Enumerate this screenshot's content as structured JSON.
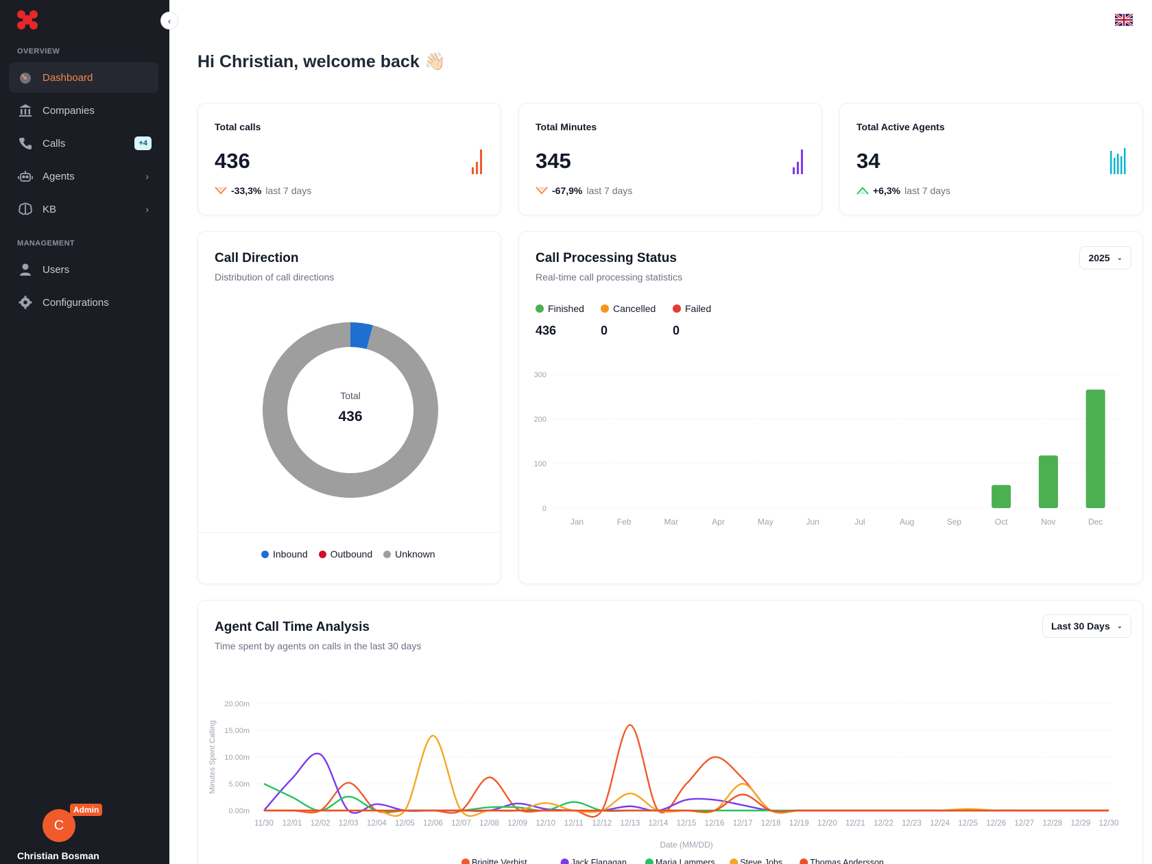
{
  "sidebar": {
    "sections": {
      "overview": "OVERVIEW",
      "management": "MANAGEMENT"
    },
    "items": [
      {
        "label": "Dashboard",
        "icon": "speedometer-icon",
        "active": true
      },
      {
        "label": "Companies",
        "icon": "bank-icon"
      },
      {
        "label": "Calls",
        "icon": "phone-icon",
        "badge": "+4"
      },
      {
        "label": "Agents",
        "icon": "robot-icon"
      },
      {
        "label": "KB",
        "icon": "brain-icon"
      },
      {
        "label": "Users",
        "icon": "user-icon"
      },
      {
        "label": "Configurations",
        "icon": "gear-icon"
      }
    ],
    "user": {
      "initial": "C",
      "role": "Admin",
      "name": "Christian Bosman"
    }
  },
  "header": {
    "greeting": "Hi Christian, welcome back 👋🏻"
  },
  "stats": [
    {
      "title": "Total calls",
      "value": "436",
      "change": "-33,3%",
      "period": "last 7 days",
      "trend": "down",
      "color": "#f15a2b"
    },
    {
      "title": "Total Minutes",
      "value": "345",
      "change": "-67,9%",
      "period": "last 7 days",
      "trend": "down",
      "color": "#7c3aed"
    },
    {
      "title": "Total Active Agents",
      "value": "34",
      "change": "+6,3%",
      "period": "last 7 days",
      "trend": "up",
      "color": "#06b6d4"
    }
  ],
  "call_direction": {
    "title": "Call Direction",
    "subtitle": "Distribution of call directions",
    "center_label": "Total",
    "center_value": "436",
    "legend": [
      {
        "name": "Inbound",
        "color": "#1f6fd1"
      },
      {
        "name": "Outbound",
        "color": "#d0102a"
      },
      {
        "name": "Unknown",
        "color": "#9e9e9e"
      }
    ]
  },
  "processing": {
    "title": "Call Processing Status",
    "subtitle": "Real-time call processing statistics",
    "year": "2025",
    "statuses": [
      {
        "name": "Finished",
        "value": "436",
        "color": "#4caf50"
      },
      {
        "name": "Cancelled",
        "value": "0",
        "color": "#f7941d"
      },
      {
        "name": "Failed",
        "value": "0",
        "color": "#e53935"
      }
    ]
  },
  "agent_time": {
    "title": "Agent Call Time Analysis",
    "subtitle": "Time spent by agents on calls in the last 30 days",
    "range": "Last 30 Days"
  },
  "chart_data": [
    {
      "type": "pie",
      "categories": [
        "Inbound",
        "Outbound",
        "Unknown"
      ],
      "values": [
        18,
        0,
        418
      ],
      "colors": [
        "#1f6fd1",
        "#d0102a",
        "#9e9e9e"
      ]
    },
    {
      "type": "bar",
      "categories": [
        "Jan",
        "Feb",
        "Mar",
        "Apr",
        "May",
        "Jun",
        "Jul",
        "Aug",
        "Sep",
        "Oct",
        "Nov",
        "Dec"
      ],
      "values": [
        0,
        0,
        0,
        0,
        0,
        0,
        0,
        0,
        0,
        52,
        118,
        266
      ],
      "ylim": [
        0,
        300
      ],
      "yticks": [
        0,
        100,
        200,
        300
      ],
      "color": "#4caf50"
    },
    {
      "type": "line",
      "xlabel": "Date (MM/DD)",
      "ylabel": "Minutes Spent Calling",
      "ylim": [
        0,
        20
      ],
      "yticks": [
        "0.00m",
        "5.00m",
        "10.00m",
        "15.00m",
        "20.00m"
      ],
      "x": [
        "11/30",
        "12/01",
        "12/02",
        "12/03",
        "12/04",
        "12/05",
        "12/06",
        "12/07",
        "12/08",
        "12/09",
        "12/10",
        "12/11",
        "12/12",
        "12/13",
        "12/14",
        "12/15",
        "12/16",
        "12/17",
        "12/18",
        "12/19",
        "12/20",
        "12/21",
        "12/22",
        "12/23",
        "12/24",
        "12/25",
        "12/26",
        "12/27",
        "12/28",
        "12/29",
        "12/30"
      ],
      "series": [
        {
          "name": "Brigitte Verbist",
          "color": "#f15a2b",
          "values": [
            0,
            0,
            0,
            5.2,
            0,
            0,
            0,
            0,
            6.2,
            0.3,
            0,
            0,
            0,
            16,
            0,
            5,
            10,
            6,
            0,
            0,
            0,
            0,
            0,
            0,
            0,
            0,
            0,
            0,
            0,
            0,
            0
          ]
        },
        {
          "name": "Jack Flanagan",
          "color": "#7c3aed",
          "values": [
            0,
            6,
            10.5,
            0,
            1.2,
            0,
            0,
            0,
            0,
            1.3,
            0.3,
            0,
            0,
            0.8,
            0,
            2,
            2,
            1,
            0,
            0,
            0,
            0,
            0,
            0,
            0,
            0,
            0,
            0,
            0,
            0,
            0
          ]
        },
        {
          "name": "Maria Lammers",
          "color": "#22c55e",
          "values": [
            5,
            2.5,
            0,
            2.6,
            0,
            0,
            0,
            0,
            0.6,
            0.6,
            0,
            1.6,
            0,
            0,
            0,
            0,
            0,
            0,
            0,
            0,
            0,
            0,
            0,
            0,
            0,
            0,
            0,
            0,
            0,
            0,
            0
          ]
        },
        {
          "name": "Steve Jobs",
          "color": "#f5a623",
          "values": [
            0,
            0,
            0,
            0,
            0,
            0,
            14,
            0,
            0,
            0,
            1.4,
            0,
            0,
            3.2,
            0,
            0,
            0,
            5,
            0,
            0,
            0,
            0,
            0,
            0,
            0,
            0.3,
            0,
            0,
            0,
            0,
            0
          ]
        },
        {
          "name": "Thomas Andersson",
          "color": "#f04e23",
          "values": [
            0,
            0,
            0,
            0,
            0,
            0,
            0,
            0,
            0,
            0,
            0,
            0,
            0,
            0,
            0,
            0,
            0,
            3,
            0,
            0,
            0,
            0,
            0,
            0,
            0,
            0,
            0,
            0,
            0,
            0,
            0
          ]
        }
      ]
    }
  ]
}
